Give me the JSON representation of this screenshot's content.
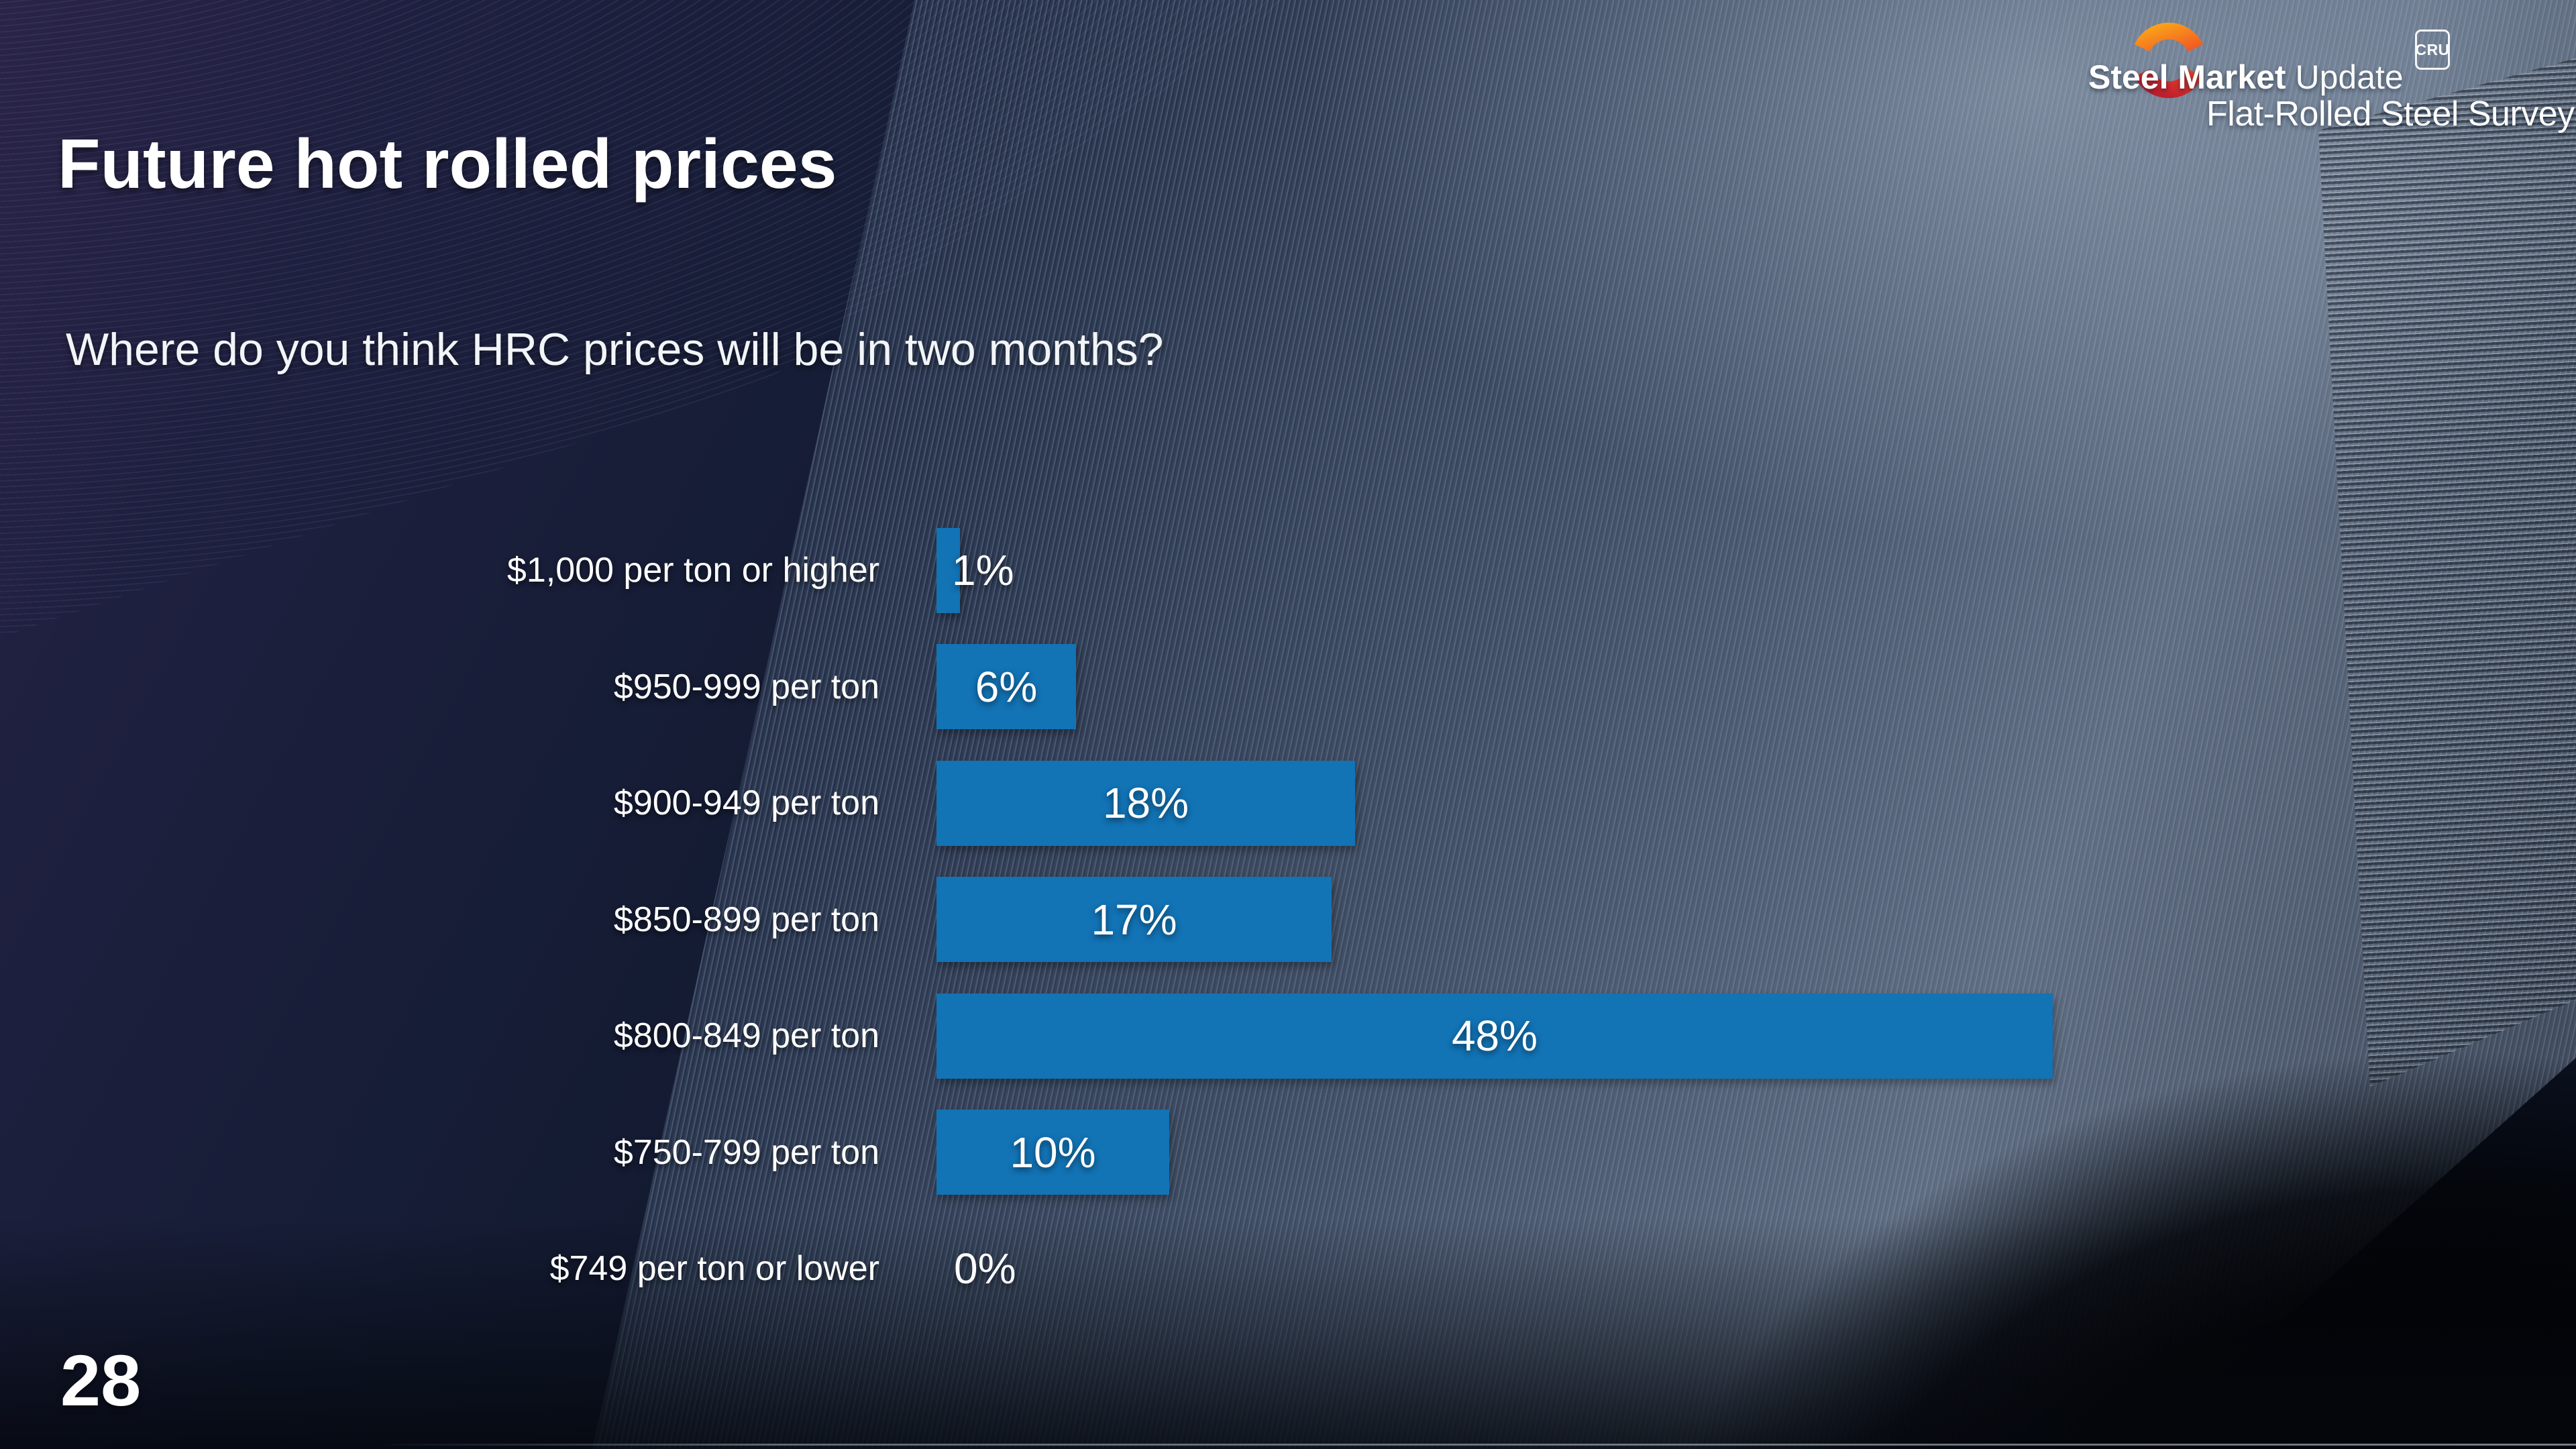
{
  "slide": {
    "title": "Future hot rolled prices",
    "subtitle": "Where do you think HRC prices will be in two months?",
    "page_number": "28"
  },
  "logo": {
    "brand_bold": "Steel Market",
    "brand_light": "Update",
    "badge": "CRU",
    "tagline": "Flat-Rolled Steel Survey",
    "swoosh_top_color": "#F9A01B",
    "swoosh_top_color2": "#F15A22",
    "swoosh_bottom_color": "#E8432A",
    "swoosh_bottom_color2": "#BE1E2D"
  },
  "chart_data": {
    "type": "bar",
    "orientation": "horizontal",
    "title": "Where do you think HRC prices will be in two months?",
    "categories": [
      "$1,000 per ton or higher",
      "$950-999 per ton",
      "$900-949 per ton",
      "$850-899 per ton",
      "$800-849 per ton",
      "$750-799 per ton",
      "$749 per ton or lower"
    ],
    "values": [
      1,
      6,
      18,
      17,
      48,
      10,
      0
    ],
    "value_labels": [
      "1%",
      "6%",
      "18%",
      "17%",
      "48%",
      "10%",
      "0%"
    ],
    "xlim": [
      0,
      50
    ],
    "grid": false,
    "legend": false,
    "bar_color": "#1273B5",
    "label_color": "#FFFFFF",
    "value_label_position": "inside-center, outside-right for small bars"
  }
}
